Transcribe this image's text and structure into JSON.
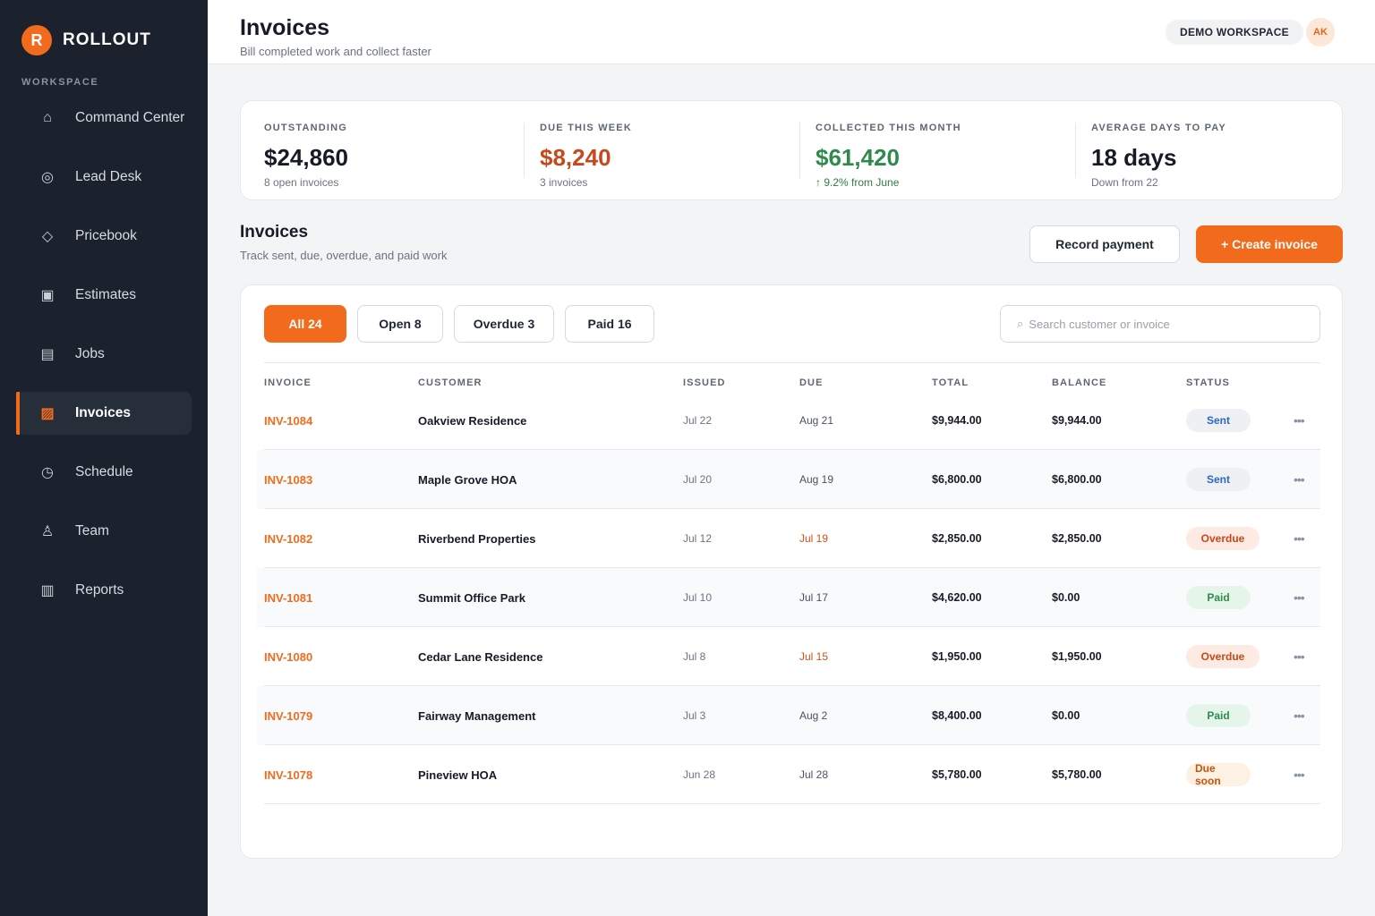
{
  "brand": {
    "logo_letter": "R",
    "name": "ROLLOUT"
  },
  "sidebar": {
    "section_label": "WORKSPACE",
    "items": [
      {
        "label": "Command Center",
        "icon": "⌂",
        "icon_name": "home-icon"
      },
      {
        "label": "Lead Desk",
        "icon": "◎",
        "icon_name": "target-icon"
      },
      {
        "label": "Pricebook",
        "icon": "◇",
        "icon_name": "diamond-icon"
      },
      {
        "label": "Estimates",
        "icon": "▣",
        "icon_name": "estimate-icon"
      },
      {
        "label": "Jobs",
        "icon": "▤",
        "icon_name": "list-icon"
      },
      {
        "label": "Invoices",
        "icon": "▨",
        "icon_name": "invoice-icon",
        "active": true
      },
      {
        "label": "Schedule",
        "icon": "◷",
        "icon_name": "clock-icon"
      },
      {
        "label": "Team",
        "icon": "♙",
        "icon_name": "person-icon"
      },
      {
        "label": "Reports",
        "icon": "▥",
        "icon_name": "chart-icon"
      }
    ]
  },
  "header": {
    "title": "Invoices",
    "subtitle": "Bill completed work and collect faster",
    "workspace": "DEMO WORKSPACE",
    "avatar_initials": "AK"
  },
  "stats": [
    {
      "label": "OUTSTANDING",
      "value": "$24,860",
      "note": "8 open invoices",
      "value_color": "#161b26",
      "note_color": "#6b7280"
    },
    {
      "label": "DUE THIS WEEK",
      "value": "$8,240",
      "note": "3 invoices",
      "value_color": "#c7481a",
      "note_color": "#6b7280"
    },
    {
      "label": "COLLECTED THIS MONTH",
      "value": "$61,420",
      "note": "↑ 9.2% from June",
      "value_color": "#2f8a4c",
      "note_color": "#2f7a46"
    },
    {
      "label": "AVERAGE DAYS TO PAY",
      "value": "18 days",
      "note": "Down from 22",
      "value_color": "#161b26",
      "note_color": "#6b7280"
    }
  ],
  "section": {
    "title": "Invoices",
    "subtitle": "Track sent, due, overdue, and paid work",
    "record_payment_label": "Record payment",
    "create_invoice_label": "+ Create invoice"
  },
  "filters": [
    {
      "label": "All 24",
      "active": true
    },
    {
      "label": "Open 8",
      "active": false
    },
    {
      "label": "Overdue 3",
      "active": false
    },
    {
      "label": "Paid 16",
      "active": false
    }
  ],
  "search": {
    "icon": "⌕",
    "placeholder": "Search customer or invoice",
    "value": ""
  },
  "table": {
    "columns": [
      "INVOICE",
      "CUSTOMER",
      "ISSUED",
      "DUE",
      "TOTAL",
      "BALANCE",
      "STATUS"
    ],
    "rows": [
      {
        "invoice": "INV-1084",
        "customer": "Oakview Residence",
        "issued": "Jul 22",
        "due": "Aug 21",
        "due_late": false,
        "total": "$9,944.00",
        "balance": "$9,944.00",
        "status": "Sent",
        "status_kind": "sent"
      },
      {
        "invoice": "INV-1083",
        "customer": "Maple Grove HOA",
        "issued": "Jul 20",
        "due": "Aug 19",
        "due_late": false,
        "total": "$6,800.00",
        "balance": "$6,800.00",
        "status": "Sent",
        "status_kind": "sent"
      },
      {
        "invoice": "INV-1082",
        "customer": "Riverbend Properties",
        "issued": "Jul 12",
        "due": "Jul 19",
        "due_late": true,
        "total": "$2,850.00",
        "balance": "$2,850.00",
        "status": "Overdue",
        "status_kind": "overdue"
      },
      {
        "invoice": "INV-1081",
        "customer": "Summit Office Park",
        "issued": "Jul 10",
        "due": "Jul 17",
        "due_late": false,
        "total": "$4,620.00",
        "balance": "$0.00",
        "status": "Paid",
        "status_kind": "paid"
      },
      {
        "invoice": "INV-1080",
        "customer": "Cedar Lane Residence",
        "issued": "Jul 8",
        "due": "Jul 15",
        "due_late": true,
        "total": "$1,950.00",
        "balance": "$1,950.00",
        "status": "Overdue",
        "status_kind": "overdue"
      },
      {
        "invoice": "INV-1079",
        "customer": "Fairway Management",
        "issued": "Jul 3",
        "due": "Aug 2",
        "due_late": false,
        "total": "$8,400.00",
        "balance": "$0.00",
        "status": "Paid",
        "status_kind": "paid"
      },
      {
        "invoice": "INV-1078",
        "customer": "Pineview HOA",
        "issued": "Jun 28",
        "due": "Jul 28",
        "due_late": false,
        "total": "$5,780.00",
        "balance": "$5,780.00",
        "status": "Due soon",
        "status_kind": "duesoon"
      }
    ],
    "row_action_icon": "•••"
  },
  "colors": {
    "accent": "#f26b1d",
    "sidebar_bg": "#1b222d",
    "page_bg": "#f3f4f6"
  }
}
